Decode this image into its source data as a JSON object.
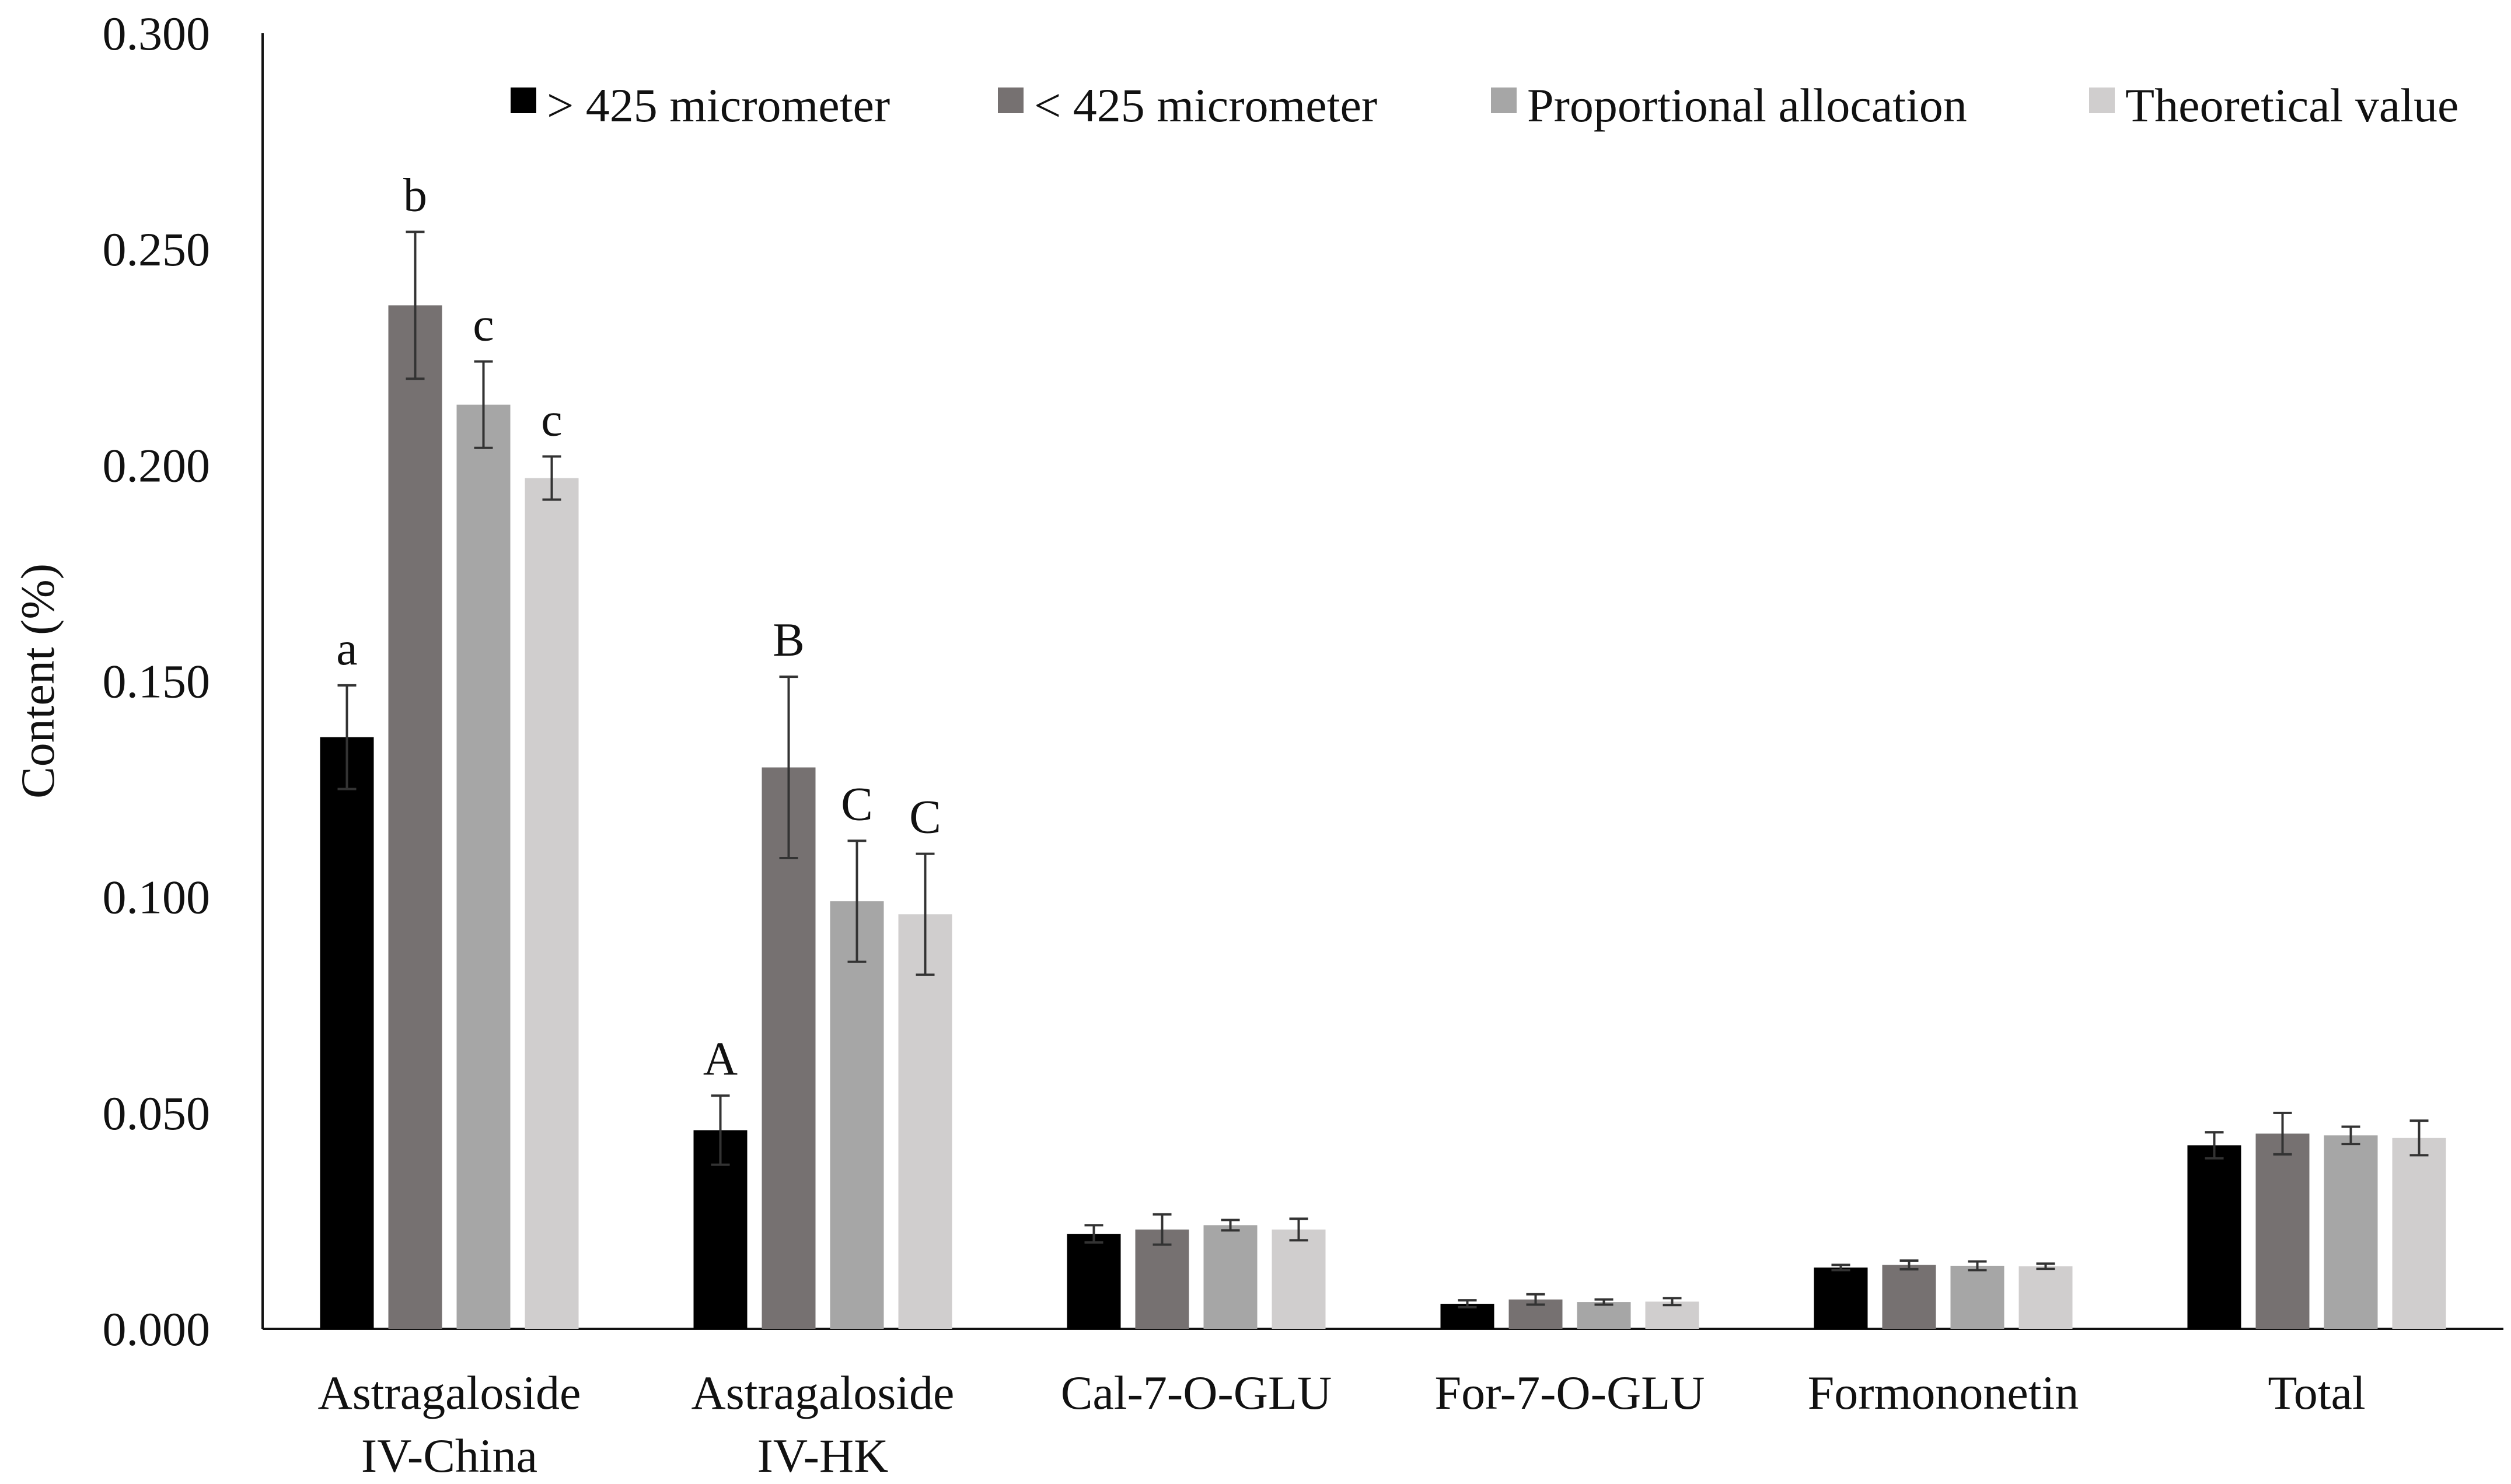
{
  "chart_data": {
    "type": "bar",
    "title": "",
    "xlabel": "",
    "ylabel": "Content (%)",
    "ylim": [
      0,
      0.3
    ],
    "yticks": [
      "0.000",
      "0.050",
      "0.100",
      "0.150",
      "0.200",
      "0.250",
      "0.300"
    ],
    "ytick_values": [
      0,
      0.05,
      0.1,
      0.15,
      0.2,
      0.25,
      0.3
    ],
    "categories": [
      [
        "Astragaloside",
        "IV-China"
      ],
      [
        "Astragaloside",
        "IV-HK"
      ],
      [
        "Cal-7-O-GLU"
      ],
      [
        "For-7-O-GLU"
      ],
      [
        "Formononetin"
      ],
      [
        "Total"
      ]
    ],
    "legend_position": "top",
    "series": [
      {
        "name": "> 425 micrometer",
        "color": "#000000",
        "values": [
          0.137,
          0.046,
          0.022,
          0.0058,
          0.0142,
          0.0425
        ],
        "errors": [
          0.012,
          0.008,
          0.002,
          0.0008,
          0.0006,
          0.003
        ],
        "labels": [
          "a",
          "A",
          "",
          "",
          "",
          ""
        ]
      },
      {
        "name": "< 425 micrometer",
        "color": "#767171",
        "values": [
          0.237,
          0.13,
          0.023,
          0.0068,
          0.0148,
          0.0452
        ],
        "errors": [
          0.017,
          0.021,
          0.0035,
          0.0012,
          0.001,
          0.0048
        ],
        "labels": [
          "b",
          "B",
          "",
          "",
          "",
          ""
        ]
      },
      {
        "name": "Proportional allocation",
        "color": "#A6A6A6",
        "values": [
          0.214,
          0.099,
          0.024,
          0.0062,
          0.0146,
          0.0448
        ],
        "errors": [
          0.01,
          0.014,
          0.0012,
          0.0006,
          0.001,
          0.002
        ],
        "labels": [
          "c",
          "C",
          "",
          "",
          "",
          ""
        ]
      },
      {
        "name": "Theoretical value",
        "color": "#D0CECE",
        "values": [
          0.197,
          0.096,
          0.023,
          0.0063,
          0.0145,
          0.0442
        ],
        "errors": [
          0.005,
          0.014,
          0.0025,
          0.0008,
          0.0006,
          0.004
        ],
        "labels": [
          "c",
          "C",
          "",
          "",
          "",
          ""
        ]
      }
    ]
  }
}
